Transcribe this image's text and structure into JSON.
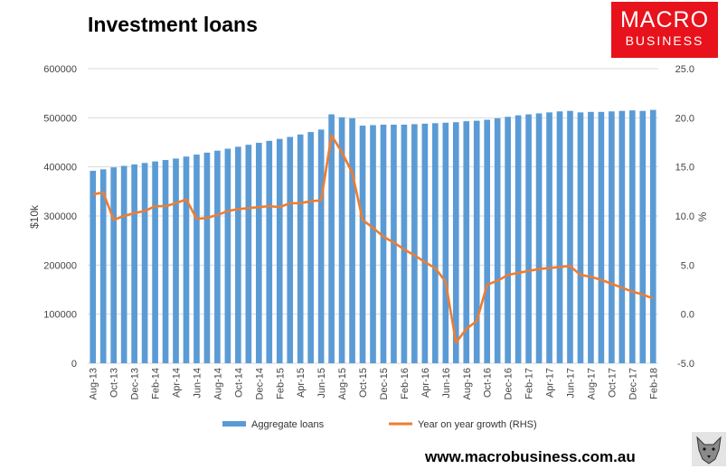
{
  "header": {
    "title": "Investment loans"
  },
  "logo": {
    "line1": "MACRO",
    "line2": "BUSINESS"
  },
  "footer": {
    "url": "www.macrobusiness.com.au"
  },
  "colors": {
    "bars": "#5b9bd5",
    "line": "#ed7d31",
    "logo_bg": "#e8121c"
  },
  "chart_data": {
    "type": "bar",
    "title": "Investment loans",
    "ylabel": "$10k",
    "y2label": "%",
    "ylim": [
      0,
      600000
    ],
    "y2lim": [
      -5,
      25
    ],
    "yticks": [
      "0",
      "100000",
      "200000",
      "300000",
      "400000",
      "500000",
      "600000"
    ],
    "y2ticks": [
      "-5.0",
      "0.0",
      "5.0",
      "10.0",
      "15.0",
      "20.0",
      "25.0"
    ],
    "grid": true,
    "legend_position": "bottom",
    "xtick_labels": [
      "Aug-13",
      "Oct-13",
      "Dec-13",
      "Feb-14",
      "Apr-14",
      "Jun-14",
      "Aug-14",
      "Oct-14",
      "Dec-14",
      "Feb-15",
      "Apr-15",
      "Jun-15",
      "Aug-15",
      "Oct-15",
      "Dec-15",
      "Feb-16",
      "Apr-16",
      "Jun-16",
      "Aug-16",
      "Oct-16",
      "Dec-16",
      "Feb-17",
      "Apr-17",
      "Jun-17",
      "Aug-17",
      "Oct-17",
      "Dec-17",
      "Feb-18"
    ],
    "categories": [
      "Aug-13",
      "Sep-13",
      "Oct-13",
      "Nov-13",
      "Dec-13",
      "Jan-14",
      "Feb-14",
      "Mar-14",
      "Apr-14",
      "May-14",
      "Jun-14",
      "Jul-14",
      "Aug-14",
      "Sep-14",
      "Oct-14",
      "Nov-14",
      "Dec-14",
      "Jan-15",
      "Feb-15",
      "Mar-15",
      "Apr-15",
      "May-15",
      "Jun-15",
      "Jul-15",
      "Aug-15",
      "Sep-15",
      "Oct-15",
      "Nov-15",
      "Dec-15",
      "Jan-16",
      "Feb-16",
      "Mar-16",
      "Apr-16",
      "May-16",
      "Jun-16",
      "Jul-16",
      "Aug-16",
      "Sep-16",
      "Oct-16",
      "Nov-16",
      "Dec-16",
      "Jan-17",
      "Feb-17",
      "Mar-17",
      "Apr-17",
      "May-17",
      "Jun-17",
      "Jul-17",
      "Aug-17",
      "Sep-17",
      "Oct-17",
      "Nov-17",
      "Dec-17",
      "Jan-18",
      "Feb-18"
    ],
    "series": [
      {
        "name": "Aggregate loans",
        "type": "bar",
        "axis": "left",
        "values": [
          392000,
          395000,
          399000,
          402000,
          405000,
          408000,
          411000,
          414000,
          417000,
          421000,
          425000,
          429000,
          433000,
          437000,
          441000,
          445000,
          449000,
          453000,
          457000,
          461000,
          466000,
          471000,
          476000,
          507000,
          501000,
          499000,
          484000,
          485000,
          486000,
          486000,
          486000,
          487000,
          488000,
          489000,
          490000,
          491000,
          493000,
          494000,
          496000,
          499000,
          502000,
          505000,
          507000,
          509000,
          511000,
          513000,
          514000,
          511000,
          512000,
          512000,
          513000,
          514000,
          515000,
          514000,
          516000
        ]
      },
      {
        "name": "Year on year growth (RHS)",
        "type": "line",
        "axis": "right",
        "values": [
          12.2,
          12.4,
          9.6,
          10.0,
          10.3,
          10.5,
          11.0,
          11.0,
          11.3,
          11.7,
          9.7,
          9.8,
          10.1,
          10.5,
          10.7,
          10.8,
          10.9,
          11.0,
          10.9,
          11.3,
          11.3,
          11.5,
          11.6,
          18.2,
          16.5,
          14.4,
          9.6,
          8.8,
          7.9,
          7.3,
          6.6,
          6.0,
          5.3,
          4.7,
          3.3,
          -2.9,
          -1.5,
          -0.7,
          3.0,
          3.4,
          4.0,
          4.2,
          4.4,
          4.6,
          4.7,
          4.8,
          4.9,
          4.0,
          3.8,
          3.5,
          3.1,
          2.7,
          2.3,
          2.0,
          1.6
        ]
      }
    ]
  }
}
